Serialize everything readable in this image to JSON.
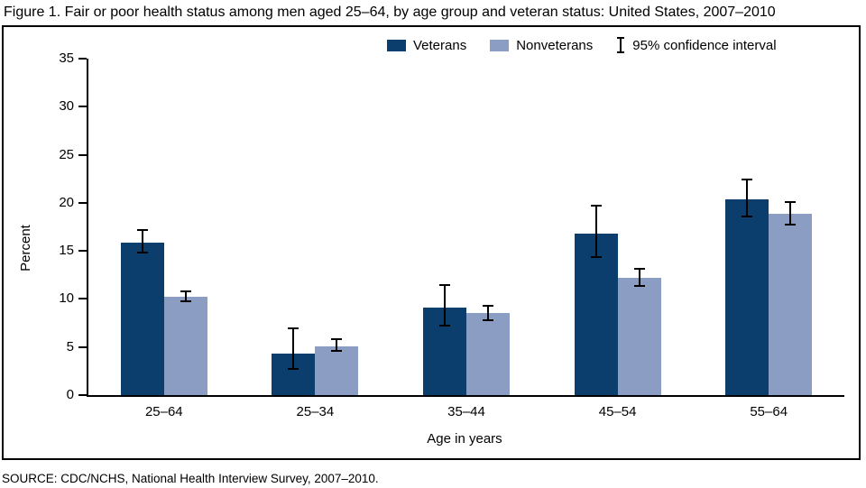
{
  "source": "SOURCE: CDC/NCHS, National Health Interview Survey, 2007–2010.",
  "chart_data": {
    "type": "bar",
    "title": "Figure 1. Fair or poor health status among men aged 25–64, by age group and veteran status: United States, 2007–2010",
    "categories": [
      "25–64",
      "25–34",
      "35–44",
      "45–54",
      "55–64"
    ],
    "series": [
      {
        "name": "Veterans",
        "color": "#0b3d6d",
        "values": [
          15.9,
          4.3,
          9.1,
          16.8,
          20.4
        ],
        "ci_low": [
          14.7,
          2.6,
          7.1,
          14.3,
          18.5
        ],
        "ci_high": [
          17.3,
          7.0,
          11.5,
          19.8,
          22.5
        ]
      },
      {
        "name": "Nonveterans",
        "color": "#8c9dc3",
        "values": [
          10.2,
          5.1,
          8.5,
          12.2,
          18.9
        ],
        "ci_low": [
          9.7,
          4.5,
          7.7,
          11.3,
          17.6
        ],
        "ci_high": [
          10.9,
          5.9,
          9.4,
          13.2,
          20.2
        ]
      }
    ],
    "legend": {
      "ci_label": "95% confidence interval"
    },
    "ylabel": "Percent",
    "xlabel": "Age in years",
    "ylim": [
      0,
      35
    ],
    "yticks": [
      0,
      5,
      10,
      15,
      20,
      25,
      30,
      35
    ],
    "grid": false,
    "legend_position": "top"
  }
}
